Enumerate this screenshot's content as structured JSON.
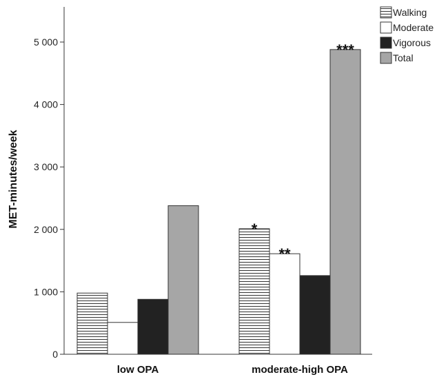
{
  "chart_data": {
    "type": "bar",
    "categories": [
      "low OPA",
      "moderate-high OPA"
    ],
    "series": [
      {
        "name": "Walking",
        "values": [
          980,
          2010
        ],
        "color": "#ffffff",
        "pattern": "horizontal-stripes"
      },
      {
        "name": "Moderate",
        "values": [
          510,
          1610
        ],
        "color": "#ffffff",
        "pattern": "solid"
      },
      {
        "name": "Vigorous",
        "values": [
          880,
          1260
        ],
        "color": "#222222",
        "pattern": "solid"
      },
      {
        "name": "Total",
        "values": [
          2380,
          4880
        ],
        "color": "#a6a6a6",
        "pattern": "solid"
      }
    ],
    "annotations": [
      {
        "category": "moderate-high OPA",
        "series": "Walking",
        "text": "*"
      },
      {
        "category": "moderate-high OPA",
        "series": "Moderate",
        "text": "**"
      },
      {
        "category": "moderate-high OPA",
        "series": "Total",
        "text": "***"
      }
    ],
    "ylabel": "MET-minutes/week",
    "xlabel": "",
    "ylim": [
      0,
      5500
    ],
    "yticks": [
      0,
      1000,
      2000,
      3000,
      4000,
      5000
    ],
    "ytick_labels": [
      "0",
      "1 000",
      "2 000",
      "3 000",
      "4 000",
      "5 000"
    ],
    "grid": false,
    "legend_position": "top-right"
  }
}
